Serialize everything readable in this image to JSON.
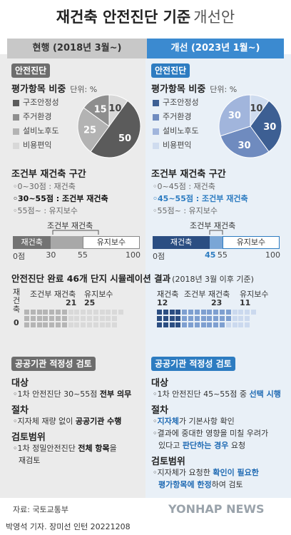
{
  "title": {
    "main": "재건축 안전진단 기준",
    "sub": "개선안"
  },
  "headers": {
    "left": "현행 (2018년 3월~)",
    "right": "개선 (2023년 1월~)"
  },
  "colors": {
    "left_accent": "#6d6d6d",
    "right_accent": "#2d7cc1",
    "left_bg": "#ebebeb",
    "right_bg": "#e9f0f7"
  },
  "left": {
    "pill": "안전진단",
    "weight_title": "평가항목 비중",
    "unit": "단위: %",
    "legend": [
      "구조안정성",
      "주거환경",
      "설비노후도",
      "비용편익"
    ],
    "section_title": "조건부 재건축 구간",
    "lines": [
      "◦0~30점 : 재건축",
      "◦30~55점 : 조건부 재건축",
      "◦55점~ : 유지보수"
    ],
    "bar_top_label": "조건부 재건축",
    "bar_labels": [
      "재건축",
      "유지보수"
    ],
    "ticks": [
      "0점",
      "30",
      "55",
      "100"
    ],
    "review_pill": "공공기관 적정성 검토",
    "target_h": "대상",
    "target_t1": "◦1차 안전진단 30~55점 ",
    "target_t2": "전부 의무",
    "proc_h": "절차",
    "proc_t1": "◦지자체 재량 없이 ",
    "proc_t2": "공공기관 수행",
    "scope_h": "검토범위",
    "scope_t1": "◦1차 정밀안전진단 ",
    "scope_t2": "전체 항목",
    "scope_t3": "을",
    "scope_t4": "재검토"
  },
  "right": {
    "pill": "안전진단",
    "weight_title": "평가항목 비중",
    "unit": "단위: %",
    "legend": [
      "구조안정성",
      "주거환경",
      "설비노후도",
      "비용편익"
    ],
    "section_title": "조건부 재건축 구간",
    "lines": [
      "◦0~45점 : 재건축",
      "◦45~55점 : 조건부 재건축",
      "◦55점~ : 유지보수"
    ],
    "bar_top_label": "조건부 재건축",
    "bar_labels": [
      "재건축",
      "유지보수"
    ],
    "ticks": [
      "0점",
      "45",
      "55",
      "100"
    ],
    "review_pill": "공공기관 적정성 검토",
    "target_h": "대상",
    "target_t1": "◦1차 안전진단 45~55점 중 ",
    "target_t2": "선택 시행",
    "proc_h": "절차",
    "proc_l1a": "◦",
    "proc_l1b": "지자체",
    "proc_l1c": "가 기본사항 확인",
    "proc_l2": "◦결과에 중대한 영향을 미칠 우려가",
    "proc_l3a": "있다고 ",
    "proc_l3b": "판단하는 경우",
    "proc_l3c": " 요청",
    "scope_h": "검토범위",
    "scope_l1a": "◦지자체가 요청한 ",
    "scope_l1b": "확인이 필요한",
    "scope_l2a": "평가항목에 한정",
    "scope_l2b": "하여 검토"
  },
  "sim": {
    "title": "안전진단 완료 46개 단지 시뮬레이션 결과",
    "note": "(2018년 3월 이후 기준)",
    "left_groups": [
      "재건축",
      "조건부 재건축",
      "유지보수"
    ],
    "right_groups": [
      "재건축",
      "조건부 재건축",
      "유지보수"
    ]
  },
  "footer": {
    "source": "자료: 국토교통부",
    "credit": "박영석 기자. 장미선 인턴  20221208",
    "logo": "YONHAP NEWS"
  },
  "chart_data": [
    {
      "type": "pie",
      "title": "평가항목 비중 (현행)",
      "unit": "%",
      "categories": [
        "구조안정성",
        "주거환경",
        "설비노후도",
        "비용편익"
      ],
      "values": [
        50,
        15,
        25,
        10
      ],
      "colors": [
        "#5b5b5b",
        "#8e8e8e",
        "#b3b3b3",
        "#d8d8d8"
      ]
    },
    {
      "type": "pie",
      "title": "평가항목 비중 (개선)",
      "unit": "%",
      "categories": [
        "구조안정성",
        "주거환경",
        "설비노후도",
        "비용편익"
      ],
      "values": [
        30,
        30,
        30,
        10
      ],
      "colors": [
        "#3d5f93",
        "#6f8bbf",
        "#a1b5dc",
        "#cfdcef"
      ]
    },
    {
      "type": "bar",
      "title": "조건부 재건축 구간 (현행)",
      "categories": [
        "재건축",
        "조건부 재건축",
        "유지보수"
      ],
      "ranges": [
        [
          0,
          30
        ],
        [
          30,
          55
        ],
        [
          55,
          100
        ]
      ],
      "xlim": [
        0,
        100
      ]
    },
    {
      "type": "bar",
      "title": "조건부 재건축 구간 (개선)",
      "categories": [
        "재건축",
        "조건부 재건축",
        "유지보수"
      ],
      "ranges": [
        [
          0,
          45
        ],
        [
          45,
          55
        ],
        [
          55,
          100
        ]
      ],
      "xlim": [
        0,
        100
      ]
    },
    {
      "type": "table",
      "title": "안전진단 완료 46개 단지 시뮬레이션 결과",
      "categories": [
        "재건축",
        "조건부 재건축",
        "유지보수"
      ],
      "series": [
        {
          "name": "현행",
          "values": [
            0,
            21,
            25
          ]
        },
        {
          "name": "개선",
          "values": [
            12,
            23,
            11
          ]
        }
      ]
    }
  ]
}
